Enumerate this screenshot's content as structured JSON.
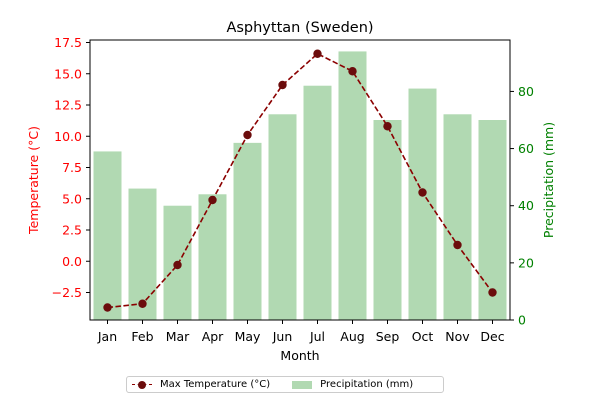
{
  "chart_data": {
    "type": "bar+line",
    "title": "Asphyttan (Sweden)",
    "xlabel": "Month",
    "categories": [
      "Jan",
      "Feb",
      "Mar",
      "Apr",
      "May",
      "Jun",
      "Jul",
      "Aug",
      "Sep",
      "Oct",
      "Nov",
      "Dec"
    ],
    "series": [
      {
        "name": "Max Temperature (°C)",
        "type": "line",
        "axis": "left",
        "color": "#8b0000",
        "marker_color": "#6b0c0c",
        "values": [
          -3.7,
          -3.4,
          -0.3,
          4.9,
          10.1,
          14.1,
          16.6,
          15.2,
          10.8,
          5.5,
          1.3,
          -2.5
        ]
      },
      {
        "name": "Precipitation (mm)",
        "type": "bar",
        "axis": "right",
        "color": "#b1d9b2",
        "values": [
          59,
          46,
          40,
          44,
          62,
          72,
          82,
          94,
          70,
          81,
          72,
          70
        ]
      }
    ],
    "y_left": {
      "label": "Temperature (°C)",
      "color": "#ff0000",
      "lim": [
        -4.7,
        17.7
      ],
      "ticks": [
        -2.5,
        0.0,
        2.5,
        5.0,
        7.5,
        10.0,
        12.5,
        15.0,
        17.5
      ],
      "tick_labels": [
        "−2.5",
        "0.0",
        "2.5",
        "5.0",
        "7.5",
        "10.0",
        "12.5",
        "15.0",
        "17.5"
      ]
    },
    "y_right": {
      "label": "Precipitation (mm)",
      "color": "#008000",
      "lim": [
        0,
        98
      ],
      "ticks": [
        0,
        20,
        40,
        60,
        80
      ],
      "tick_labels": [
        "0",
        "20",
        "40",
        "60",
        "80"
      ]
    },
    "grid": false,
    "legend_position": "bottom-center"
  }
}
